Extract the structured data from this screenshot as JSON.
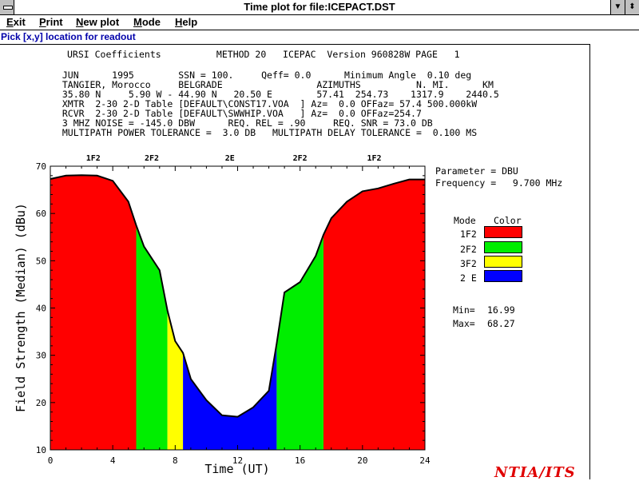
{
  "window": {
    "title": "Time plot for file:ICEPACT.DST",
    "sysmenu_icon": "system-menu-icon",
    "minimize_icon": "triangle-down-icon",
    "maximize_icon": "triangle-up-down-icon"
  },
  "menu": [
    {
      "u": "E",
      "rest": "xit"
    },
    {
      "u": "P",
      "rest": "rint"
    },
    {
      "u": "N",
      "rest": "ew plot"
    },
    {
      "u": "M",
      "rest": "ode"
    },
    {
      "u": "H",
      "rest": "elp"
    }
  ],
  "status": "Pick [x,y] location for readout",
  "header_lines": [
    "URSI Coefficients          METHOD 20   ICEPAC  Version 960828W PAGE   1",
    "  JUN      1995        SSN = 100.     Qeff= 0.0      Minimum Angle  0.10 deg",
    "  TANGIER, Morocco     BELGRADE                 AZIMUTHS          N. MI.      KM",
    "  35.80 N     5.90 W - 44.90 N   20.50 E        57.41  254.73    1317.9    2440.5",
    "  XMTR  2-30 2-D Table [DEFAULT\\CONST17.VOA  ] Az=  0.0 OFFaz= 57.4 500.000kW",
    "  RCVR  2-30 2-D Table [DEFAULT\\SWWHIP.VOA   ] Az=  0.0 OFFaz=254.7",
    "  3 MHZ NOISE = -145.0 DBW      REQ. REL = .90     REQ. SNR = 73.0 DB",
    "  MULTIPATH POWER TOLERANCE =  3.0 DB   MULTIPATH DELAY TOLERANCE =  0.100 MS"
  ],
  "parameter_label": "Parameter = DBU",
  "frequency_label": "Frequency =   9.700 MHz",
  "legend": {
    "mode_header": "Mode",
    "color_header": "Color",
    "items": [
      {
        "name": "1F2",
        "color": "#ff0000"
      },
      {
        "name": "2F2",
        "color": "#00ee00"
      },
      {
        "name": "3F2",
        "color": "#ffff00"
      },
      {
        "name": "2 E",
        "color": "#0000ff"
      }
    ]
  },
  "stats": {
    "min_label": "Min=",
    "min_value": "16.99",
    "max_label": "Max=",
    "max_value": "68.27"
  },
  "credit": "NTIA/ITS",
  "chart_data": {
    "type": "area",
    "xlabel": "Time (UT)",
    "ylabel": "Field Strength (Median) (dBu)",
    "xlim": [
      0,
      24
    ],
    "ylim": [
      10,
      70
    ],
    "xticks": [
      "0",
      "4",
      "8",
      "12",
      "16",
      "20",
      "24"
    ],
    "yticks": [
      "10",
      "20",
      "30",
      "40",
      "50",
      "60",
      "70"
    ],
    "grid": false,
    "legend_position": "right",
    "x": [
      0,
      1,
      2,
      3,
      4,
      5,
      5.5,
      6,
      7,
      7.5,
      8,
      8.5,
      9,
      10,
      11,
      12,
      13,
      14,
      14.5,
      15,
      16,
      17,
      17.5,
      18,
      19,
      20,
      21,
      22,
      23,
      24
    ],
    "y": [
      67.3,
      68.0,
      68.1,
      68.0,
      66.9,
      62.5,
      57.5,
      53.0,
      48.0,
      39.5,
      33.0,
      30.5,
      25.0,
      20.5,
      17.3,
      17.0,
      19.0,
      22.5,
      32.5,
      43.3,
      45.5,
      51.0,
      55.5,
      59.0,
      62.5,
      64.7,
      65.3,
      66.3,
      67.2,
      67.2
    ],
    "mode_segments": [
      {
        "mode": "1F2",
        "x_start": 0,
        "x_end": 5.5
      },
      {
        "mode": "2F2",
        "x_start": 5.5,
        "x_end": 7.5
      },
      {
        "mode": "3F2",
        "x_start": 7.5,
        "x_end": 8.5
      },
      {
        "mode": "2 E",
        "x_start": 8.5,
        "x_end": 14.5
      },
      {
        "mode": "2F2",
        "x_start": 14.5,
        "x_end": 17.5
      },
      {
        "mode": "1F2",
        "x_start": 17.5,
        "x_end": 24
      }
    ],
    "top_mode_labels": [
      {
        "label": "1F2",
        "x": 2.75
      },
      {
        "label": "2F2",
        "x": 6.5
      },
      {
        "label": "2E",
        "x": 11.5
      },
      {
        "label": "2F2",
        "x": 16
      },
      {
        "label": "1F2",
        "x": 20.75
      }
    ]
  }
}
